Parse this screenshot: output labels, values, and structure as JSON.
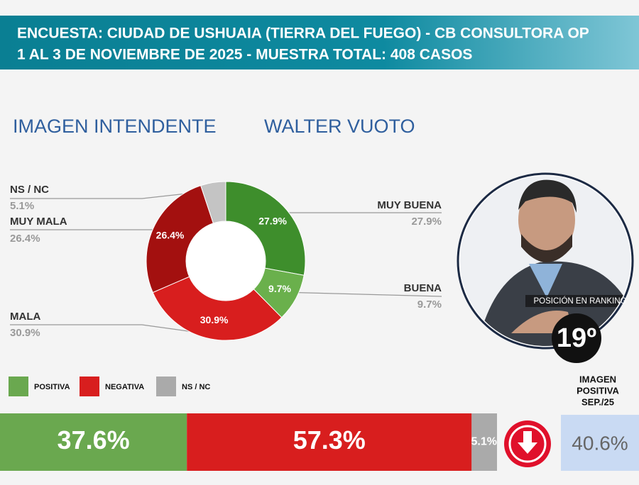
{
  "header": {
    "lines": [
      "ENCUESTA: CIUDAD DE USHUAIA (TIERRA DEL FUEGO) - CB CONSULTORA OP",
      "1 AL 3 DE NOVIEMBRE DE 2025 - MUESTRA TOTAL: 408 CASOS"
    ]
  },
  "chart_data": [
    {
      "type": "pie",
      "title": "IMAGEN INTENDENTE",
      "subtitle": "WALTER VUOTO",
      "categories": [
        "MUY BUENA",
        "BUENA",
        "MALA",
        "MUY MALA",
        "NS / NC"
      ],
      "values": [
        27.9,
        9.7,
        30.9,
        26.4,
        5.1
      ],
      "value_labels": [
        "27.9%",
        "9.7%",
        "30.9%",
        "26.4%",
        "5.1%"
      ],
      "colors": [
        "#3e8e2c",
        "#6ab04c",
        "#d81e1e",
        "#a3100f",
        "#c4c4c4"
      ]
    },
    {
      "type": "bar",
      "orientation": "horizontal",
      "stacked": true,
      "xlim": [
        0,
        100
      ],
      "series": [
        {
          "name": "POSITIVA",
          "color": "#6aa84f",
          "values": [
            37.6
          ],
          "value_labels": [
            "37.6%"
          ]
        },
        {
          "name": "NEGATIVA",
          "color": "#d81e1e",
          "values": [
            57.3
          ],
          "value_labels": [
            "57.3%"
          ]
        },
        {
          "name": "NS / NC",
          "color": "#aaaaaa",
          "values": [
            5.1
          ],
          "value_labels": [
            "5.1%"
          ]
        }
      ]
    }
  ],
  "ranking": {
    "label": "POSICIÓN EN RANKING",
    "value": "19º"
  },
  "previous": {
    "title": [
      "IMAGEN",
      "POSITIVA",
      "SEP./25"
    ],
    "value_label": "40.6%"
  }
}
